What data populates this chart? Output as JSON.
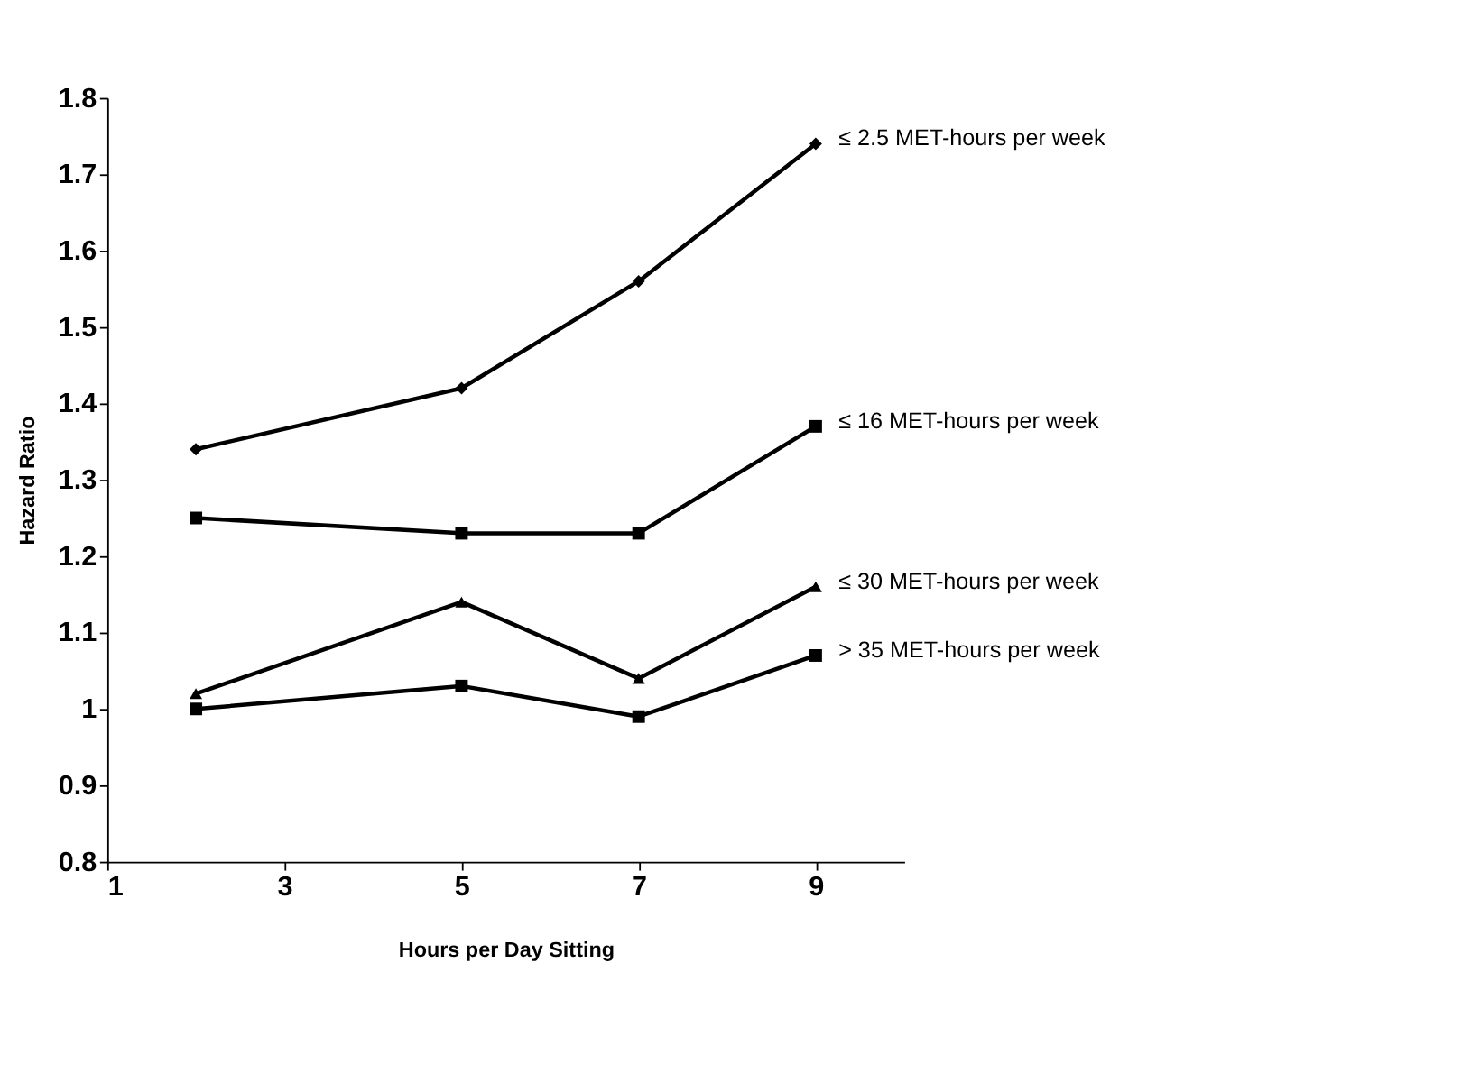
{
  "chart_data": {
    "type": "line",
    "xlabel": "Hours per Day Sitting",
    "ylabel": "Hazard Ratio",
    "x": [
      2,
      5,
      7,
      9
    ],
    "xlim": [
      1,
      10
    ],
    "xticks": [
      1,
      3,
      5,
      7,
      9
    ],
    "ylim": [
      0.8,
      1.8
    ],
    "yticks": [
      0.8,
      0.9,
      1,
      1.1,
      1.2,
      1.3,
      1.4,
      1.5,
      1.6,
      1.7,
      1.8
    ],
    "grid": false,
    "line_style": "solid",
    "series": [
      {
        "name": "≤ 2.5 MET-hours per week",
        "color": "#000000",
        "marker": "diamond",
        "values": [
          1.34,
          1.42,
          1.56,
          1.74
        ]
      },
      {
        "name": "≤ 16 MET-hours per week",
        "color": "#000000",
        "marker": "square",
        "values": [
          1.25,
          1.23,
          1.23,
          1.37
        ]
      },
      {
        "name": "≤ 30 MET-hours per week",
        "color": "#000000",
        "marker": "triangle",
        "values": [
          1.02,
          1.14,
          1.04,
          1.16
        ]
      },
      {
        "name": "> 35 MET-hours per week",
        "color": "#000000",
        "marker": "square",
        "values": [
          1.0,
          1.03,
          0.99,
          1.07
        ]
      }
    ]
  }
}
